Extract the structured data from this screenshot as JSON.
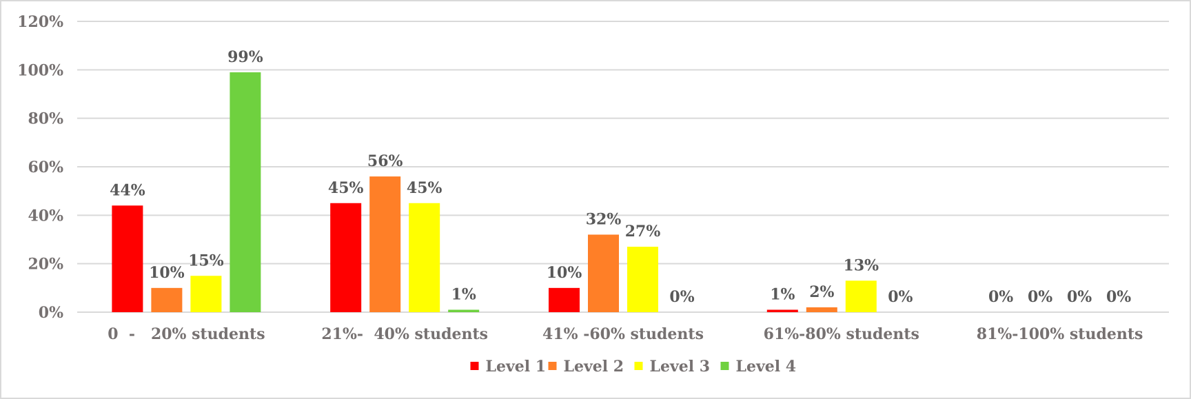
{
  "chart_data": {
    "type": "bar",
    "categories": [
      "0  -   20% students",
      "21%-  40% students",
      "41% -60% students",
      "61%-80% students",
      "81%-100% students"
    ],
    "series": [
      {
        "name": "Level 1",
        "color": "#ff0000",
        "values": [
          44,
          45,
          10,
          1,
          0
        ],
        "labels": [
          "44%",
          "45%",
          "10%",
          "1%",
          "0%"
        ]
      },
      {
        "name": "Level 2",
        "color": "#ff7f27",
        "values": [
          10,
          56,
          32,
          2,
          0
        ],
        "labels": [
          "10%",
          "56%",
          "32%",
          "2%",
          "0%"
        ]
      },
      {
        "name": "Level 3",
        "color": "#ffff00",
        "values": [
          15,
          45,
          27,
          13,
          0
        ],
        "labels": [
          "15%",
          "45%",
          "27%",
          "13%",
          "0%"
        ]
      },
      {
        "name": "Level 4",
        "color": "#6fd13f",
        "values": [
          99,
          1,
          0,
          0,
          0
        ],
        "labels": [
          "99%",
          "1%",
          "0%",
          "0%",
          "0%"
        ]
      }
    ],
    "yticks": [
      "0%",
      "20%",
      "40%",
      "60%",
      "80%",
      "100%",
      "120%"
    ],
    "ylim": [
      0,
      120
    ],
    "grid": true,
    "legend_position": "bottom",
    "title": "",
    "xlabel": "",
    "ylabel": ""
  }
}
